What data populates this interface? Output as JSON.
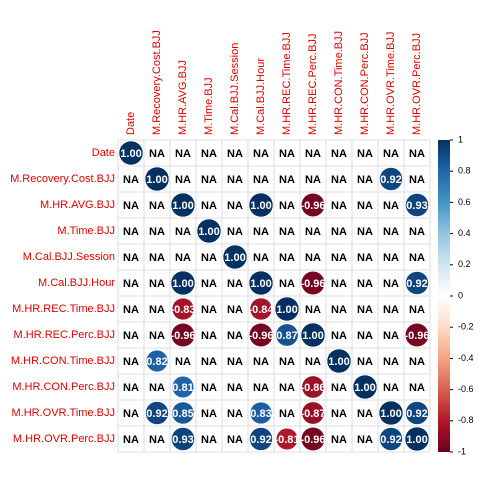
{
  "chart_data": {
    "type": "corrplot",
    "categories": [
      "Date",
      "M.Recovery.Cost.BJJ",
      "M.HR.AVG.BJJ",
      "M.Time.BJJ",
      "M.Cal.BJJ.Session",
      "M.Cal.BJJ.Hour",
      "M.HR.REC.Time.BJJ",
      "M.HR.REC.Perc.BJJ",
      "M.HR.CON.Time.BJJ",
      "M.HR.CON.Perc.BJJ",
      "M.HR.OVR.Time.BJJ",
      "M.HR.OVR.Perc.BJJ"
    ],
    "values": [
      [
        1.0,
        null,
        null,
        null,
        null,
        null,
        null,
        null,
        null,
        null,
        null,
        null
      ],
      [
        null,
        1.0,
        null,
        null,
        null,
        null,
        null,
        null,
        null,
        null,
        0.92,
        null
      ],
      [
        null,
        null,
        1.0,
        null,
        null,
        1.0,
        null,
        -0.96,
        null,
        null,
        null,
        0.93
      ],
      [
        null,
        null,
        null,
        1.0,
        null,
        null,
        null,
        null,
        null,
        null,
        null,
        null
      ],
      [
        null,
        null,
        null,
        null,
        1.0,
        null,
        null,
        null,
        null,
        null,
        null,
        null
      ],
      [
        null,
        null,
        1.0,
        null,
        null,
        1.0,
        null,
        -0.96,
        null,
        null,
        null,
        0.92
      ],
      [
        null,
        null,
        -0.83,
        null,
        null,
        -0.84,
        1.0,
        null,
        null,
        null,
        null,
        null
      ],
      [
        null,
        null,
        -0.96,
        null,
        null,
        -0.96,
        0.87,
        1.0,
        null,
        null,
        null,
        -0.96
      ],
      [
        null,
        0.82,
        null,
        null,
        null,
        null,
        null,
        null,
        1.0,
        null,
        null,
        null
      ],
      [
        null,
        null,
        0.81,
        null,
        null,
        null,
        null,
        -0.86,
        null,
        1.0,
        null,
        null
      ],
      [
        null,
        0.92,
        0.85,
        null,
        null,
        0.83,
        null,
        -0.87,
        null,
        null,
        1.0,
        0.92
      ],
      [
        null,
        null,
        0.93,
        null,
        null,
        0.92,
        -0.81,
        -0.96,
        null,
        null,
        0.92,
        1.0
      ]
    ],
    "value_labels": [
      [
        "1.00",
        "NA",
        "NA",
        "NA",
        "NA",
        "NA",
        "NA",
        "NA",
        "NA",
        "NA",
        "NA",
        "NA"
      ],
      [
        "NA",
        "1.00",
        "NA",
        "NA",
        "NA",
        "NA",
        "NA",
        "NA",
        "NA",
        "NA",
        "0.92",
        "NA"
      ],
      [
        "NA",
        "NA",
        "1.00",
        "NA",
        "NA",
        "1.00",
        "NA",
        "-0.96",
        "NA",
        "NA",
        "NA",
        "0.93"
      ],
      [
        "NA",
        "NA",
        "NA",
        "1.00",
        "NA",
        "NA",
        "NA",
        "NA",
        "NA",
        "NA",
        "NA",
        "NA"
      ],
      [
        "NA",
        "NA",
        "NA",
        "NA",
        "1.00",
        "NA",
        "NA",
        "NA",
        "NA",
        "NA",
        "NA",
        "NA"
      ],
      [
        "NA",
        "NA",
        "1.00",
        "NA",
        "NA",
        "1.00",
        "NA",
        "-0.96",
        "NA",
        "NA",
        "NA",
        "0.92"
      ],
      [
        "NA",
        "NA",
        "-0.83",
        "NA",
        "NA",
        "-0.84",
        "1.00",
        "NA",
        "NA",
        "NA",
        "NA",
        "NA"
      ],
      [
        "NA",
        "NA",
        "-0.96",
        "NA",
        "NA",
        "-0.96",
        "0.87",
        "1.00",
        "NA",
        "NA",
        "NA",
        "-0.96"
      ],
      [
        "NA",
        "0.82",
        "NA",
        "NA",
        "NA",
        "NA",
        "NA",
        "NA",
        "1.00",
        "NA",
        "NA",
        "NA"
      ],
      [
        "NA",
        "NA",
        "0.81",
        "NA",
        "NA",
        "NA",
        "NA",
        "-0.86",
        "NA",
        "1.00",
        "NA",
        "NA"
      ],
      [
        "NA",
        "0.92",
        "0.85",
        "NA",
        "NA",
        "0.83",
        "NA",
        "-0.87",
        "NA",
        "NA",
        "1.00",
        "0.92"
      ],
      [
        "NA",
        "NA",
        "0.93",
        "NA",
        "NA",
        "0.92",
        "-0.81",
        "-0.96",
        "NA",
        "NA",
        "0.92",
        "1.00"
      ]
    ],
    "palette": [
      "#67001F",
      "#B2182B",
      "#D6604D",
      "#F4A582",
      "#FDDBC7",
      "#FFFFFF",
      "#D1E5F0",
      "#92C5DE",
      "#4393C3",
      "#2166AC",
      "#053061"
    ],
    "clim": [
      -1,
      1
    ],
    "cticks": [
      1,
      0.8,
      0.6,
      0.4,
      0.2,
      0,
      -0.2,
      -0.4,
      -0.6,
      -0.8,
      -1
    ]
  }
}
